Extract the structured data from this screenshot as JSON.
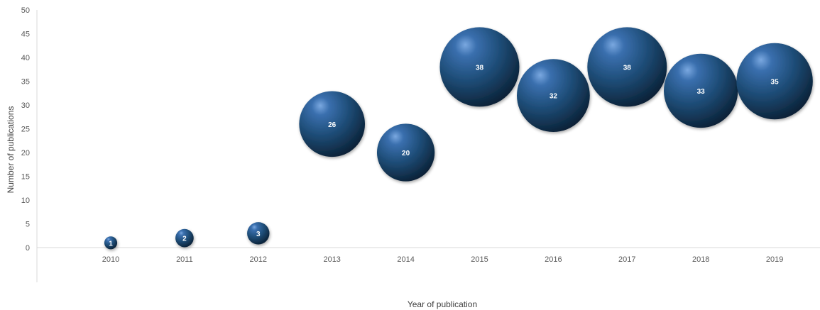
{
  "chart_data": {
    "type": "scatter",
    "variant": "bubble",
    "title": "",
    "xlabel": "Year of publication",
    "ylabel": "Number of publications",
    "ylim": [
      0,
      50
    ],
    "yticks": [
      0,
      5,
      10,
      15,
      20,
      25,
      30,
      35,
      40,
      45,
      50
    ],
    "categories": [
      "2010",
      "2011",
      "2012",
      "2013",
      "2014",
      "2015",
      "2016",
      "2017",
      "2018",
      "2019"
    ],
    "values": [
      1,
      2,
      3,
      26,
      20,
      38,
      32,
      38,
      33,
      35
    ],
    "data_labels": [
      "1",
      "2",
      "3",
      "26",
      "20",
      "38",
      "32",
      "38",
      "33",
      "35"
    ],
    "bubble_sizes": [
      1,
      2,
      3,
      26,
      20,
      38,
      32,
      38,
      33,
      35
    ],
    "grid": false,
    "legend": "none",
    "colors": {
      "bubble": "#1f4e79",
      "bubble_highlight": "#6f9fd8",
      "bubble_dark": "#0d2742",
      "axis": "#d9d9d9",
      "tick_text": "#595959"
    }
  }
}
